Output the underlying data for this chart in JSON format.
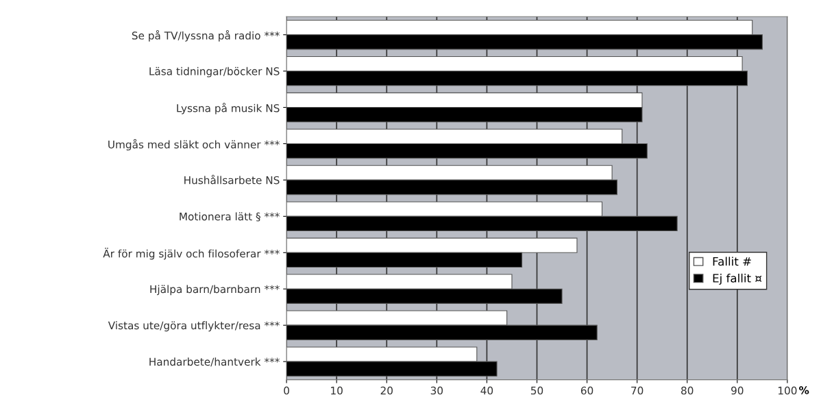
{
  "chart_data": {
    "type": "bar",
    "orientation": "horizontal",
    "xlabel": "%",
    "categories": [
      "Se på TV/lyssna på radio ***",
      "Läsa tidningar/böcker NS",
      "Lyssna på musik NS",
      "Umgås med släkt och vänner ***",
      "Hushållsarbete NS",
      "Motionera lätt § ***",
      "Är för mig själv och filosoferar ***",
      "Hjälpa barn/barnbarn ***",
      "Vistas ute/göra utflykter/resa ***",
      "Handarbete/hantverk ***"
    ],
    "series": [
      {
        "name": "Fallit #",
        "color": "#ffffff",
        "values": [
          93,
          91,
          71,
          67,
          65,
          63,
          58,
          45,
          44,
          38
        ]
      },
      {
        "name": "Ej fallit ¤",
        "color": "#000000",
        "values": [
          95,
          92,
          71,
          72,
          66,
          78,
          47,
          55,
          62,
          42
        ]
      }
    ],
    "xlim": [
      0,
      100
    ],
    "xticks": [
      0,
      10,
      20,
      30,
      40,
      50,
      60,
      70,
      80,
      90,
      100
    ],
    "grid": "x",
    "legend": "right"
  }
}
